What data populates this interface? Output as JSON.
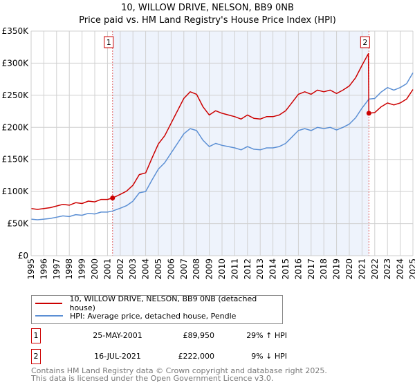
{
  "chart_data": {
    "type": "line",
    "title": "10, WILLOW DRIVE, NELSON, BB9 0NB",
    "subtitle": "Price paid vs. HM Land Registry's House Price Index (HPI)",
    "xlim": [
      1995,
      2025
    ],
    "ylim": [
      0,
      350
    ],
    "y_units": "GBP thousands",
    "y_ticks": [
      0,
      50,
      100,
      150,
      200,
      250,
      300,
      350
    ],
    "y_tick_labels": [
      "£0",
      "£50K",
      "£100K",
      "£150K",
      "£200K",
      "£250K",
      "£300K",
      "£350K"
    ],
    "x_ticks": [
      1995,
      1996,
      1997,
      1998,
      1999,
      2000,
      2001,
      2002,
      2003,
      2004,
      2005,
      2006,
      2007,
      2008,
      2009,
      2010,
      2011,
      2012,
      2013,
      2014,
      2015,
      2016,
      2017,
      2018,
      2019,
      2020,
      2021,
      2022,
      2023,
      2024,
      2025
    ],
    "x_tick_labels": [
      "1995",
      "1996",
      "1997",
      "1998",
      "1999",
      "2000",
      "2001",
      "2002",
      "2003",
      "2004",
      "2005",
      "2006",
      "2007",
      "2008",
      "2009",
      "2010",
      "2011",
      "2012",
      "2013",
      "2014",
      "2015",
      "2016",
      "2017",
      "2018",
      "2019",
      "2020",
      "2021",
      "2022",
      "2023",
      "2024",
      "2025"
    ],
    "grid": true,
    "shaded_range": [
      2001.4,
      2021.54
    ],
    "series": [
      {
        "name": "10, WILLOW DRIVE, NELSON, BB9 0NB (detached house)",
        "color": "#cc0000",
        "x": [
          1995,
          1995.5,
          1996,
          1996.5,
          1997,
          1997.5,
          1998,
          1998.5,
          1999,
          1999.5,
          2000,
          2000.5,
          2001,
          2001.4,
          2002,
          2002.5,
          2003,
          2003.5,
          2004,
          2004.5,
          2005,
          2005.5,
          2006,
          2006.5,
          2007,
          2007.5,
          2008,
          2008.5,
          2009,
          2009.5,
          2010,
          2010.5,
          2011,
          2011.5,
          2012,
          2012.5,
          2013,
          2013.5,
          2014,
          2014.5,
          2015,
          2015.5,
          2016,
          2016.5,
          2017,
          2017.5,
          2018,
          2018.5,
          2019,
          2019.5,
          2020,
          2020.5,
          2021,
          2021.5,
          2021.54,
          2022,
          2022.5,
          2023,
          2023.5,
          2024,
          2024.5,
          2025
        ],
        "y": [
          73.5,
          72.2,
          73.5,
          74.8,
          77.4,
          80,
          78.7,
          82.6,
          81.3,
          85.1,
          83.9,
          87.7,
          87.7,
          89.95,
          95.5,
          100.6,
          109.7,
          126.4,
          129,
          152.2,
          174.2,
          187.1,
          206.4,
          225.8,
          245.1,
          255.4,
          251.6,
          232.2,
          219.3,
          225.8,
          221.9,
          219.3,
          216.7,
          212.9,
          219.3,
          214.1,
          212.9,
          216.7,
          216.7,
          219.3,
          225.8,
          238.7,
          251.6,
          255.4,
          251.6,
          258,
          255.4,
          258,
          252.8,
          258,
          264.5,
          277.4,
          296.7,
          314.8,
          222,
          223,
          232,
          238,
          235,
          238,
          244,
          259
        ]
      },
      {
        "name": "HPI: Average price, detached house, Pendle",
        "color": "#5b8fd4",
        "x": [
          1995,
          1995.5,
          1996,
          1996.5,
          1997,
          1997.5,
          1998,
          1998.5,
          1999,
          1999.5,
          2000,
          2000.5,
          2001,
          2001.4,
          2002,
          2002.5,
          2003,
          2003.5,
          2004,
          2004.5,
          2005,
          2005.5,
          2006,
          2006.5,
          2007,
          2007.5,
          2008,
          2008.5,
          2009,
          2009.5,
          2010,
          2010.5,
          2011,
          2011.5,
          2012,
          2012.5,
          2013,
          2013.5,
          2014,
          2014.5,
          2015,
          2015.5,
          2016,
          2016.5,
          2017,
          2017.5,
          2018,
          2018.5,
          2019,
          2019.5,
          2020,
          2020.5,
          2021,
          2021.54,
          2022,
          2022.5,
          2023,
          2023.5,
          2024,
          2024.5,
          2025
        ],
        "y": [
          57,
          56,
          57,
          58,
          60,
          62,
          61,
          64,
          63,
          66,
          65,
          68,
          68,
          69.7,
          74,
          78,
          85,
          98,
          100,
          118,
          135,
          145,
          160,
          175,
          190,
          198,
          195,
          180,
          170,
          175,
          172,
          170,
          168,
          165,
          170,
          166,
          165,
          168,
          168,
          170,
          175,
          185,
          195,
          198,
          195,
          200,
          198,
          200,
          196,
          200,
          205,
          215,
          230,
          244,
          245,
          255,
          262,
          258,
          262,
          268,
          285
        ]
      }
    ],
    "annotations": [
      {
        "label": "1",
        "x": 2001.4,
        "y": 89.95
      },
      {
        "label": "2",
        "x": 2021.54,
        "y": 222
      }
    ],
    "legend_placement": "below"
  },
  "sales": [
    {
      "num": "1",
      "date": "25-MAY-2001",
      "price": "£89,950",
      "hpi": "29% ↑ HPI"
    },
    {
      "num": "2",
      "date": "16-JUL-2021",
      "price": "£222,000",
      "hpi": "9% ↓ HPI"
    }
  ],
  "footer": {
    "line1": "Contains HM Land Registry data © Crown copyright and database right 2025.",
    "line2": "This data is licensed under the Open Government Licence v3.0."
  }
}
